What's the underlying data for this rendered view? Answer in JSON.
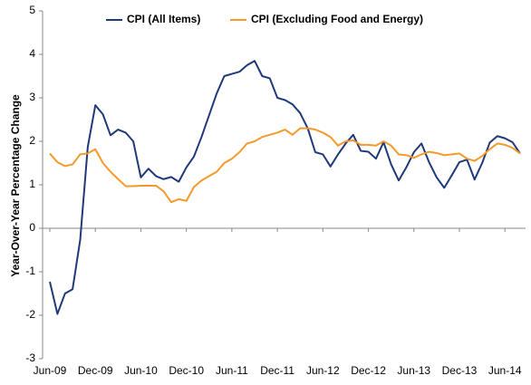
{
  "chart_data": {
    "type": "line",
    "ylabel": "Year-Over-Year Percentage Change",
    "categories": [
      "Jun-09",
      null,
      null,
      null,
      null,
      null,
      "Dec-09",
      null,
      null,
      null,
      null,
      null,
      "Jun-10",
      null,
      null,
      null,
      null,
      null,
      "Dec-10",
      null,
      null,
      null,
      null,
      null,
      "Jun-11",
      null,
      null,
      null,
      null,
      null,
      "Dec-11",
      null,
      null,
      null,
      null,
      null,
      "Jun-12",
      null,
      null,
      null,
      null,
      null,
      "Dec-12",
      null,
      null,
      null,
      null,
      null,
      "Jun-13",
      null,
      null,
      null,
      null,
      null,
      "Dec-13",
      null,
      null,
      null,
      null,
      null,
      "Jun-14",
      null,
      null
    ],
    "series": [
      {
        "name": "CPI (All Items)",
        "color": "#1f3a7a",
        "values": [
          -1.23,
          -1.97,
          -1.5,
          -1.4,
          -0.27,
          1.87,
          2.83,
          2.62,
          2.14,
          2.27,
          2.2,
          2.0,
          1.17,
          1.37,
          1.2,
          1.13,
          1.18,
          1.07,
          1.4,
          1.65,
          2.1,
          2.6,
          3.1,
          3.5,
          3.55,
          3.6,
          3.75,
          3.85,
          3.5,
          3.45,
          3.0,
          2.95,
          2.85,
          2.65,
          2.3,
          1.75,
          1.7,
          1.42,
          1.7,
          1.95,
          2.15,
          1.78,
          1.76,
          1.6,
          1.98,
          1.47,
          1.1,
          1.4,
          1.75,
          1.95,
          1.52,
          1.17,
          0.93,
          1.22,
          1.52,
          1.58,
          1.12,
          1.5,
          1.97,
          2.12,
          2.07,
          1.98,
          1.72
        ]
      },
      {
        "name": "CPI (Excluding Food and Energy)",
        "color": "#f39a2b",
        "values": [
          1.72,
          1.52,
          1.43,
          1.47,
          1.7,
          1.72,
          1.82,
          1.5,
          1.3,
          1.13,
          0.97,
          0.97,
          0.98,
          0.98,
          0.98,
          0.85,
          0.6,
          0.67,
          0.63,
          0.95,
          1.1,
          1.2,
          1.3,
          1.5,
          1.6,
          1.75,
          1.95,
          2.0,
          2.1,
          2.15,
          2.2,
          2.27,
          2.15,
          2.3,
          2.3,
          2.27,
          2.2,
          2.1,
          1.9,
          2.0,
          2.02,
          1.92,
          1.92,
          1.9,
          2.0,
          1.9,
          1.7,
          1.68,
          1.62,
          1.7,
          1.76,
          1.73,
          1.68,
          1.7,
          1.72,
          1.6,
          1.55,
          1.66,
          1.82,
          1.95,
          1.92,
          1.85,
          1.72
        ]
      }
    ],
    "ylim": [
      -3,
      5
    ],
    "yticks": [
      -3,
      -2,
      -1,
      0,
      1,
      2,
      3,
      4,
      5
    ],
    "grid": false,
    "legend": "top"
  }
}
